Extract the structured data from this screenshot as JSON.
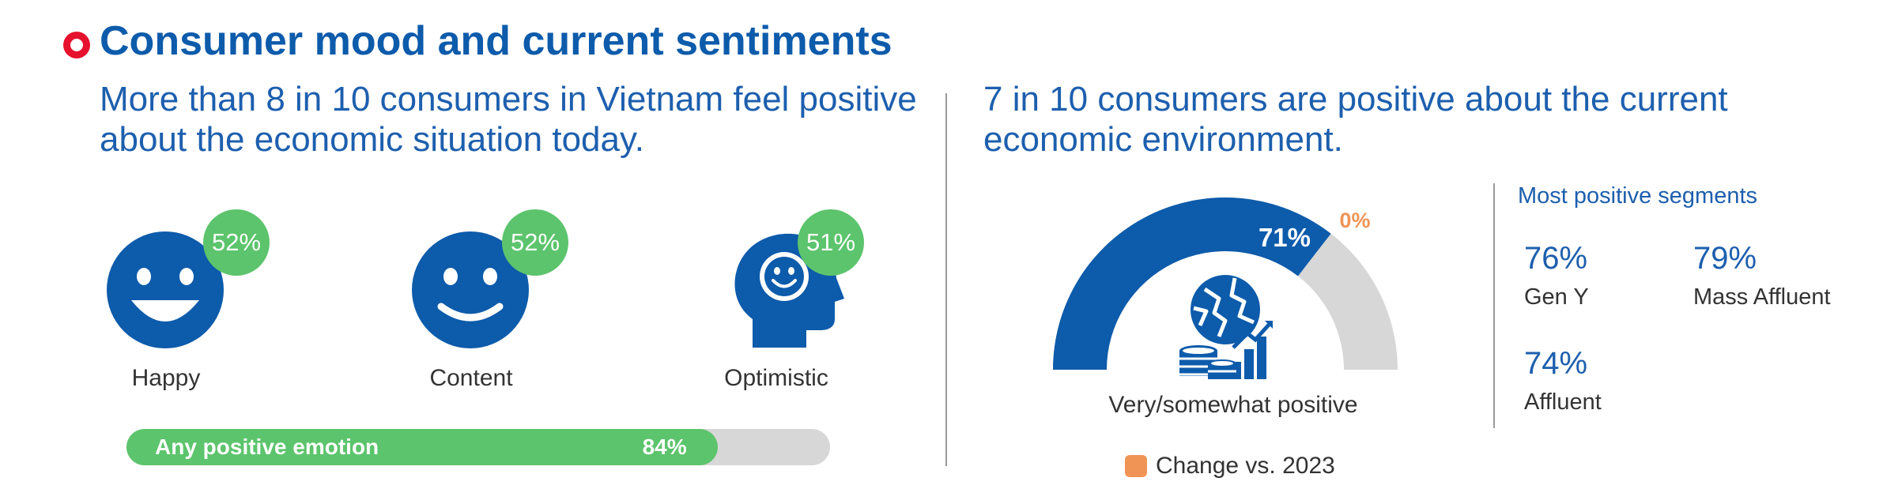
{
  "page_title": "Consumer mood and current sentiments",
  "colors": {
    "brand_blue": "#0d5bab",
    "accent_red": "#e5112d",
    "green": "#5cc46c",
    "grey": "#d7d7d7",
    "orange": "#f09456"
  },
  "chart_data": [
    {
      "type": "bar",
      "title": "More than 8 in 10 consumers in Vietnam feel positive\nabout the economic situation today.",
      "categories": [
        "Happy",
        "Content",
        "Optimistic"
      ],
      "values": [
        52,
        52,
        51
      ],
      "value_labels": [
        "52%",
        "52%",
        "51%"
      ],
      "icons": [
        "smiley-face-icon",
        "smile-face-icon",
        "head-smiley-icon"
      ],
      "summary_bar": {
        "label": "Any positive emotion",
        "value": 84,
        "value_label": "84%"
      }
    },
    {
      "type": "pie",
      "title": "7 in 10 consumers are positive about the current\neconomic environment.",
      "gauge": {
        "label": "Very/somewhat positive",
        "value": 71,
        "value_label": "71%",
        "change_label": "0%",
        "icon": "globe-growth-icon"
      },
      "legend": "Change vs. 2023",
      "segments_title": "Most positive segments",
      "segments": [
        {
          "label": "Gen Y",
          "value": 76,
          "value_label": "76%"
        },
        {
          "label": "Mass Affluent",
          "value": 79,
          "value_label": "79%"
        },
        {
          "label": "Affluent",
          "value": 74,
          "value_label": "74%"
        }
      ]
    }
  ]
}
